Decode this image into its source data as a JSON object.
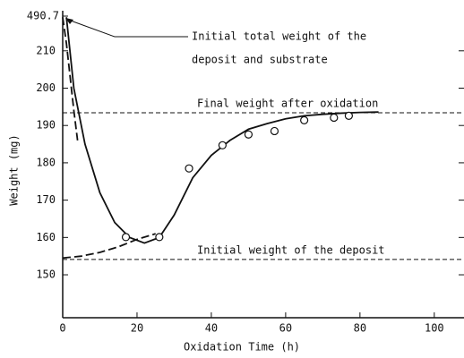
{
  "chart_data": {
    "type": "line",
    "xlabel": "Oxidation Time (h)",
    "ylabel": "Weight (mg)",
    "xlim": [
      0,
      108
    ],
    "xticks": [
      0,
      20,
      40,
      60,
      80,
      100
    ],
    "ylim": [
      138.5,
      219.3
    ],
    "yticks": [
      150,
      160,
      170,
      180,
      190,
      200,
      210
    ],
    "y_top_label": "490.7",
    "series": [
      {
        "style": "solid",
        "color": "#111",
        "x": [
          1,
          3,
          6,
          10,
          14,
          18,
          22,
          26,
          30,
          35,
          40,
          45,
          50,
          55,
          60,
          65,
          70,
          75,
          80,
          85
        ],
        "values": [
          219,
          200,
          185,
          172,
          164,
          160,
          158.5,
          160,
          166,
          176,
          182,
          186,
          189,
          190.5,
          191.8,
          192.6,
          193,
          193.3,
          193.5,
          193.6
        ]
      },
      {
        "style": "dashed",
        "color": "#111",
        "x": [
          0,
          1,
          2,
          3,
          4
        ],
        "values": [
          219,
          212,
          203,
          194,
          186
        ]
      },
      {
        "style": "dashed",
        "color": "#111",
        "x": [
          0,
          5,
          10,
          15,
          20,
          25
        ],
        "values": [
          154.5,
          155,
          156,
          157.5,
          159.5,
          161
        ]
      },
      {
        "style": "marker",
        "color": "#111",
        "x": [
          17,
          26,
          34,
          43,
          50,
          57,
          65,
          73,
          77
        ],
        "values": [
          160.1,
          160.1,
          178.5,
          184.7,
          187.6,
          188.5,
          191.4,
          192.1,
          192.6
        ]
      }
    ],
    "hlines": [
      {
        "value": 193.4,
        "label": "Final weight after oxidation"
      },
      {
        "value": 154.1,
        "label": "Initial weight of the deposit"
      }
    ],
    "annotation": [
      "Initial total weight of the",
      "deposit and substrate"
    ]
  }
}
